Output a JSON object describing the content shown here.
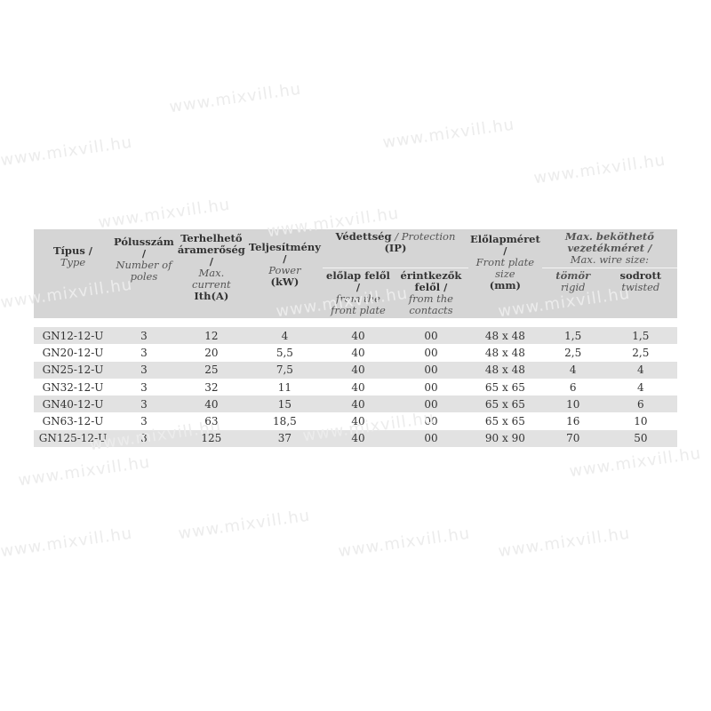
{
  "watermark": "www.mixvill.hu",
  "header": {
    "type": {
      "hu": "Típus /",
      "en": "Type"
    },
    "poles": {
      "hu": "Pólusszám /",
      "en": "Number of poles"
    },
    "current": {
      "hu": "Terhelhető áramerőség /",
      "en": "Max. current",
      "unit": "Ith(A)"
    },
    "power": {
      "hu": "Teljesítmény /",
      "en": "Power",
      "unit": "(kW)"
    },
    "protection": {
      "hu": "Védettség",
      "en": "/ Protection",
      "unit": "(IP)"
    },
    "front": {
      "hu": "előlap felől /",
      "en": "from the front plate"
    },
    "contacts": {
      "hu": "érintkezők felől /",
      "en": "from the contacts"
    },
    "plate": {
      "hu": "Előlapméret /",
      "en": "Front plate size",
      "unit": "(mm)"
    },
    "wire": {
      "hu": "Max. beköthető vezetékméret /",
      "en": "Max. wire size:"
    },
    "rigid": {
      "hu": "tömör",
      "en": "rigid"
    },
    "twisted": {
      "hu": "sodrott",
      "en": "twisted"
    }
  },
  "rows": [
    [
      "GN12-12-U",
      "3",
      "12",
      "4",
      "40",
      "00",
      "48 x 48",
      "1,5",
      "1,5"
    ],
    [
      "GN20-12-U",
      "3",
      "20",
      "5,5",
      "40",
      "00",
      "48 x 48",
      "2,5",
      "2,5"
    ],
    [
      "GN25-12-U",
      "3",
      "25",
      "7,5",
      "40",
      "00",
      "48 x 48",
      "4",
      "4"
    ],
    [
      "GN32-12-U",
      "3",
      "32",
      "11",
      "40",
      "00",
      "65 x 65",
      "6",
      "4"
    ],
    [
      "GN40-12-U",
      "3",
      "40",
      "15",
      "40",
      "00",
      "65 x 65",
      "10",
      "6"
    ],
    [
      "GN63-12-U",
      "3",
      "63",
      "18,5",
      "40",
      "00",
      "65 x 65",
      "16",
      "10"
    ],
    [
      "GN125-12-U",
      "3",
      "125",
      "37",
      "40",
      "00",
      "90 x 90",
      "70",
      "50"
    ]
  ]
}
